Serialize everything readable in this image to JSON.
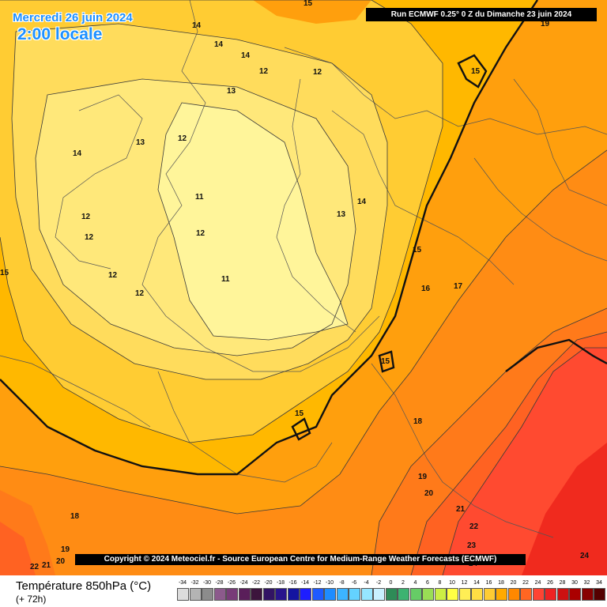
{
  "header": {
    "date": "Mercredi 26 juin 2024",
    "local_time": "2:00 locale",
    "run_info": "Run ECMWF 0.25° 0 Z du Dimanche 23 juin 2024"
  },
  "copyright": "Copyright © 2024 Meteociel.fr - Source European Centre for Medium-Range Weather Forecasts (ECMWF)",
  "footer": {
    "variable": "Température 850hPa (°C)",
    "lead_time": "(+ 72h)"
  },
  "color_scale": {
    "labels": [
      "-34",
      "-32",
      "-30",
      "-28",
      "-26",
      "-24",
      "-22",
      "-20",
      "-18",
      "-16",
      "-14",
      "-12",
      "-10",
      "-8",
      "-6",
      "-4",
      "-2",
      "0",
      "2",
      "4",
      "6",
      "8",
      "10",
      "12",
      "14",
      "16",
      "18",
      "20",
      "22",
      "24",
      "26",
      "28",
      "30",
      "32",
      "34"
    ],
    "colors": [
      "#dcdcdc",
      "#b4b4b4",
      "#8c8c8c",
      "#8c5a8c",
      "#783c78",
      "#5a1e5a",
      "#3c143c",
      "#321464",
      "#28148c",
      "#1414a0",
      "#1e1eff",
      "#1e5aff",
      "#1e8cff",
      "#3cb4ff",
      "#64d2ff",
      "#96e6ff",
      "#c8f0ff",
      "#2e8b57",
      "#3cb371",
      "#66cc66",
      "#99dd55",
      "#ccee44",
      "#ffff44",
      "#ffee55",
      "#ffdd44",
      "#ffcc33",
      "#ffaa00",
      "#ff8800",
      "#ff6622",
      "#ff4433",
      "#ee2222",
      "#cc1111",
      "#aa0000",
      "#880000",
      "#550000"
    ]
  },
  "map": {
    "colors": {
      "t11": "#fff59a",
      "t12": "#ffe87a",
      "t13": "#ffdc5c",
      "t14": "#ffcc33",
      "t15": "#ffb800",
      "t16": "#ff9f0d",
      "t17": "#ff8c14",
      "t18": "#ff7a1a",
      "t20": "#ff6222",
      "t22": "#ff4a30",
      "t24": "#f02a1e",
      "t26": "#d81818",
      "boundary": "#555555"
    },
    "isotherm_labels": [
      {
        "text": "14"
      },
      {
        "text": "14"
      },
      {
        "text": "14"
      },
      {
        "text": "12"
      },
      {
        "text": "12"
      },
      {
        "text": "13"
      },
      {
        "text": "12"
      },
      {
        "text": "13"
      },
      {
        "text": "14"
      },
      {
        "text": "11"
      },
      {
        "text": "12"
      },
      {
        "text": "12"
      },
      {
        "text": "12"
      },
      {
        "text": "12"
      },
      {
        "text": "11"
      },
      {
        "text": "12"
      },
      {
        "text": "13"
      },
      {
        "text": "14"
      },
      {
        "text": "15"
      },
      {
        "text": "15"
      },
      {
        "text": "15"
      },
      {
        "text": "15"
      },
      {
        "text": "15"
      },
      {
        "text": "15"
      },
      {
        "text": "16"
      },
      {
        "text": "17"
      },
      {
        "text": "18"
      },
      {
        "text": "18"
      },
      {
        "text": "19"
      },
      {
        "text": "20"
      },
      {
        "text": "21"
      },
      {
        "text": "22"
      },
      {
        "text": "23"
      },
      {
        "text": "24"
      },
      {
        "text": "24"
      },
      {
        "text": "19"
      },
      {
        "text": "20"
      },
      {
        "text": "21"
      },
      {
        "text": "22"
      },
      {
        "text": "19"
      }
    ]
  }
}
